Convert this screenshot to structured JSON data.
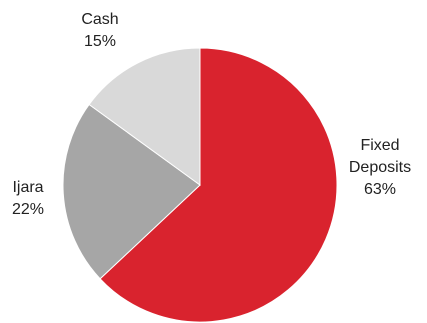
{
  "chart_data": {
    "type": "pie",
    "title": "",
    "slices": [
      {
        "label": "Fixed Deposits",
        "label_lines": [
          "Fixed",
          "Deposits"
        ],
        "value": 63,
        "value_label": "63%",
        "color": "#d9232e"
      },
      {
        "label": "Ijara",
        "label_lines": [
          "Ijara"
        ],
        "value": 22,
        "value_label": "22%",
        "color": "#a6a6a6"
      },
      {
        "label": "Cash",
        "label_lines": [
          "Cash"
        ],
        "value": 15,
        "value_label": "15%",
        "color": "#d9d9d9"
      }
    ],
    "legend": "none"
  }
}
